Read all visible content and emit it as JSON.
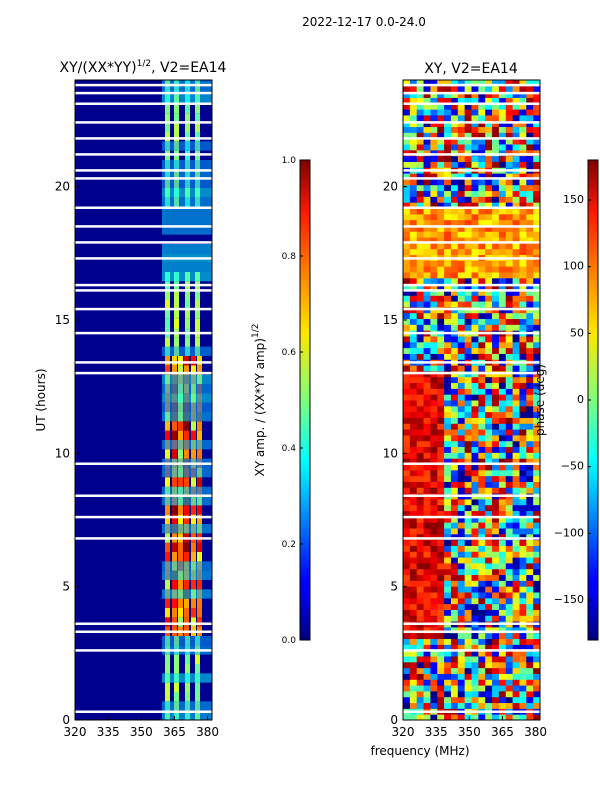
{
  "suptitle": "2022-12-17 0.0-24.0",
  "shared": {
    "xlabel": "frequency (MHz)",
    "ylabel": "UT (hours)"
  },
  "chart_data": [
    {
      "type": "heatmap",
      "title_main": "XY/(XX*YY)",
      "title_sup": "1/2",
      "title_rest": ", V2=EA14",
      "xlim": [
        320,
        382
      ],
      "ylim": [
        0,
        24
      ],
      "xticks": [
        320,
        335,
        350,
        365,
        380
      ],
      "yticks": [
        0,
        5,
        10,
        15,
        20
      ],
      "colorbar": {
        "label_main": "XY amp. / (XX*YY amp)",
        "label_sup": "1/2",
        "range": [
          0.0,
          1.0
        ],
        "ticks": [
          "0.0",
          "0.2",
          "0.4",
          "0.6",
          "0.8",
          "1.0"
        ],
        "tick_values": [
          0.0,
          0.2,
          0.4,
          0.6,
          0.8,
          1.0
        ],
        "colormap": "jet"
      }
    },
    {
      "type": "heatmap",
      "title": "XY, V2=EA14",
      "xlim": [
        320,
        382
      ],
      "ylim": [
        0,
        24
      ],
      "xticks": [
        320,
        335,
        350,
        365,
        380
      ],
      "yticks": [
        0,
        5,
        10,
        15,
        20
      ],
      "colorbar": {
        "label": "phase (deg)",
        "range": [
          -180,
          180
        ],
        "ticks": [
          "−150",
          "−100",
          "−50",
          "0",
          "50",
          "100",
          "150"
        ],
        "tick_values": [
          -150,
          -100,
          -50,
          0,
          50,
          100,
          150
        ],
        "colormap": "jet"
      }
    }
  ]
}
